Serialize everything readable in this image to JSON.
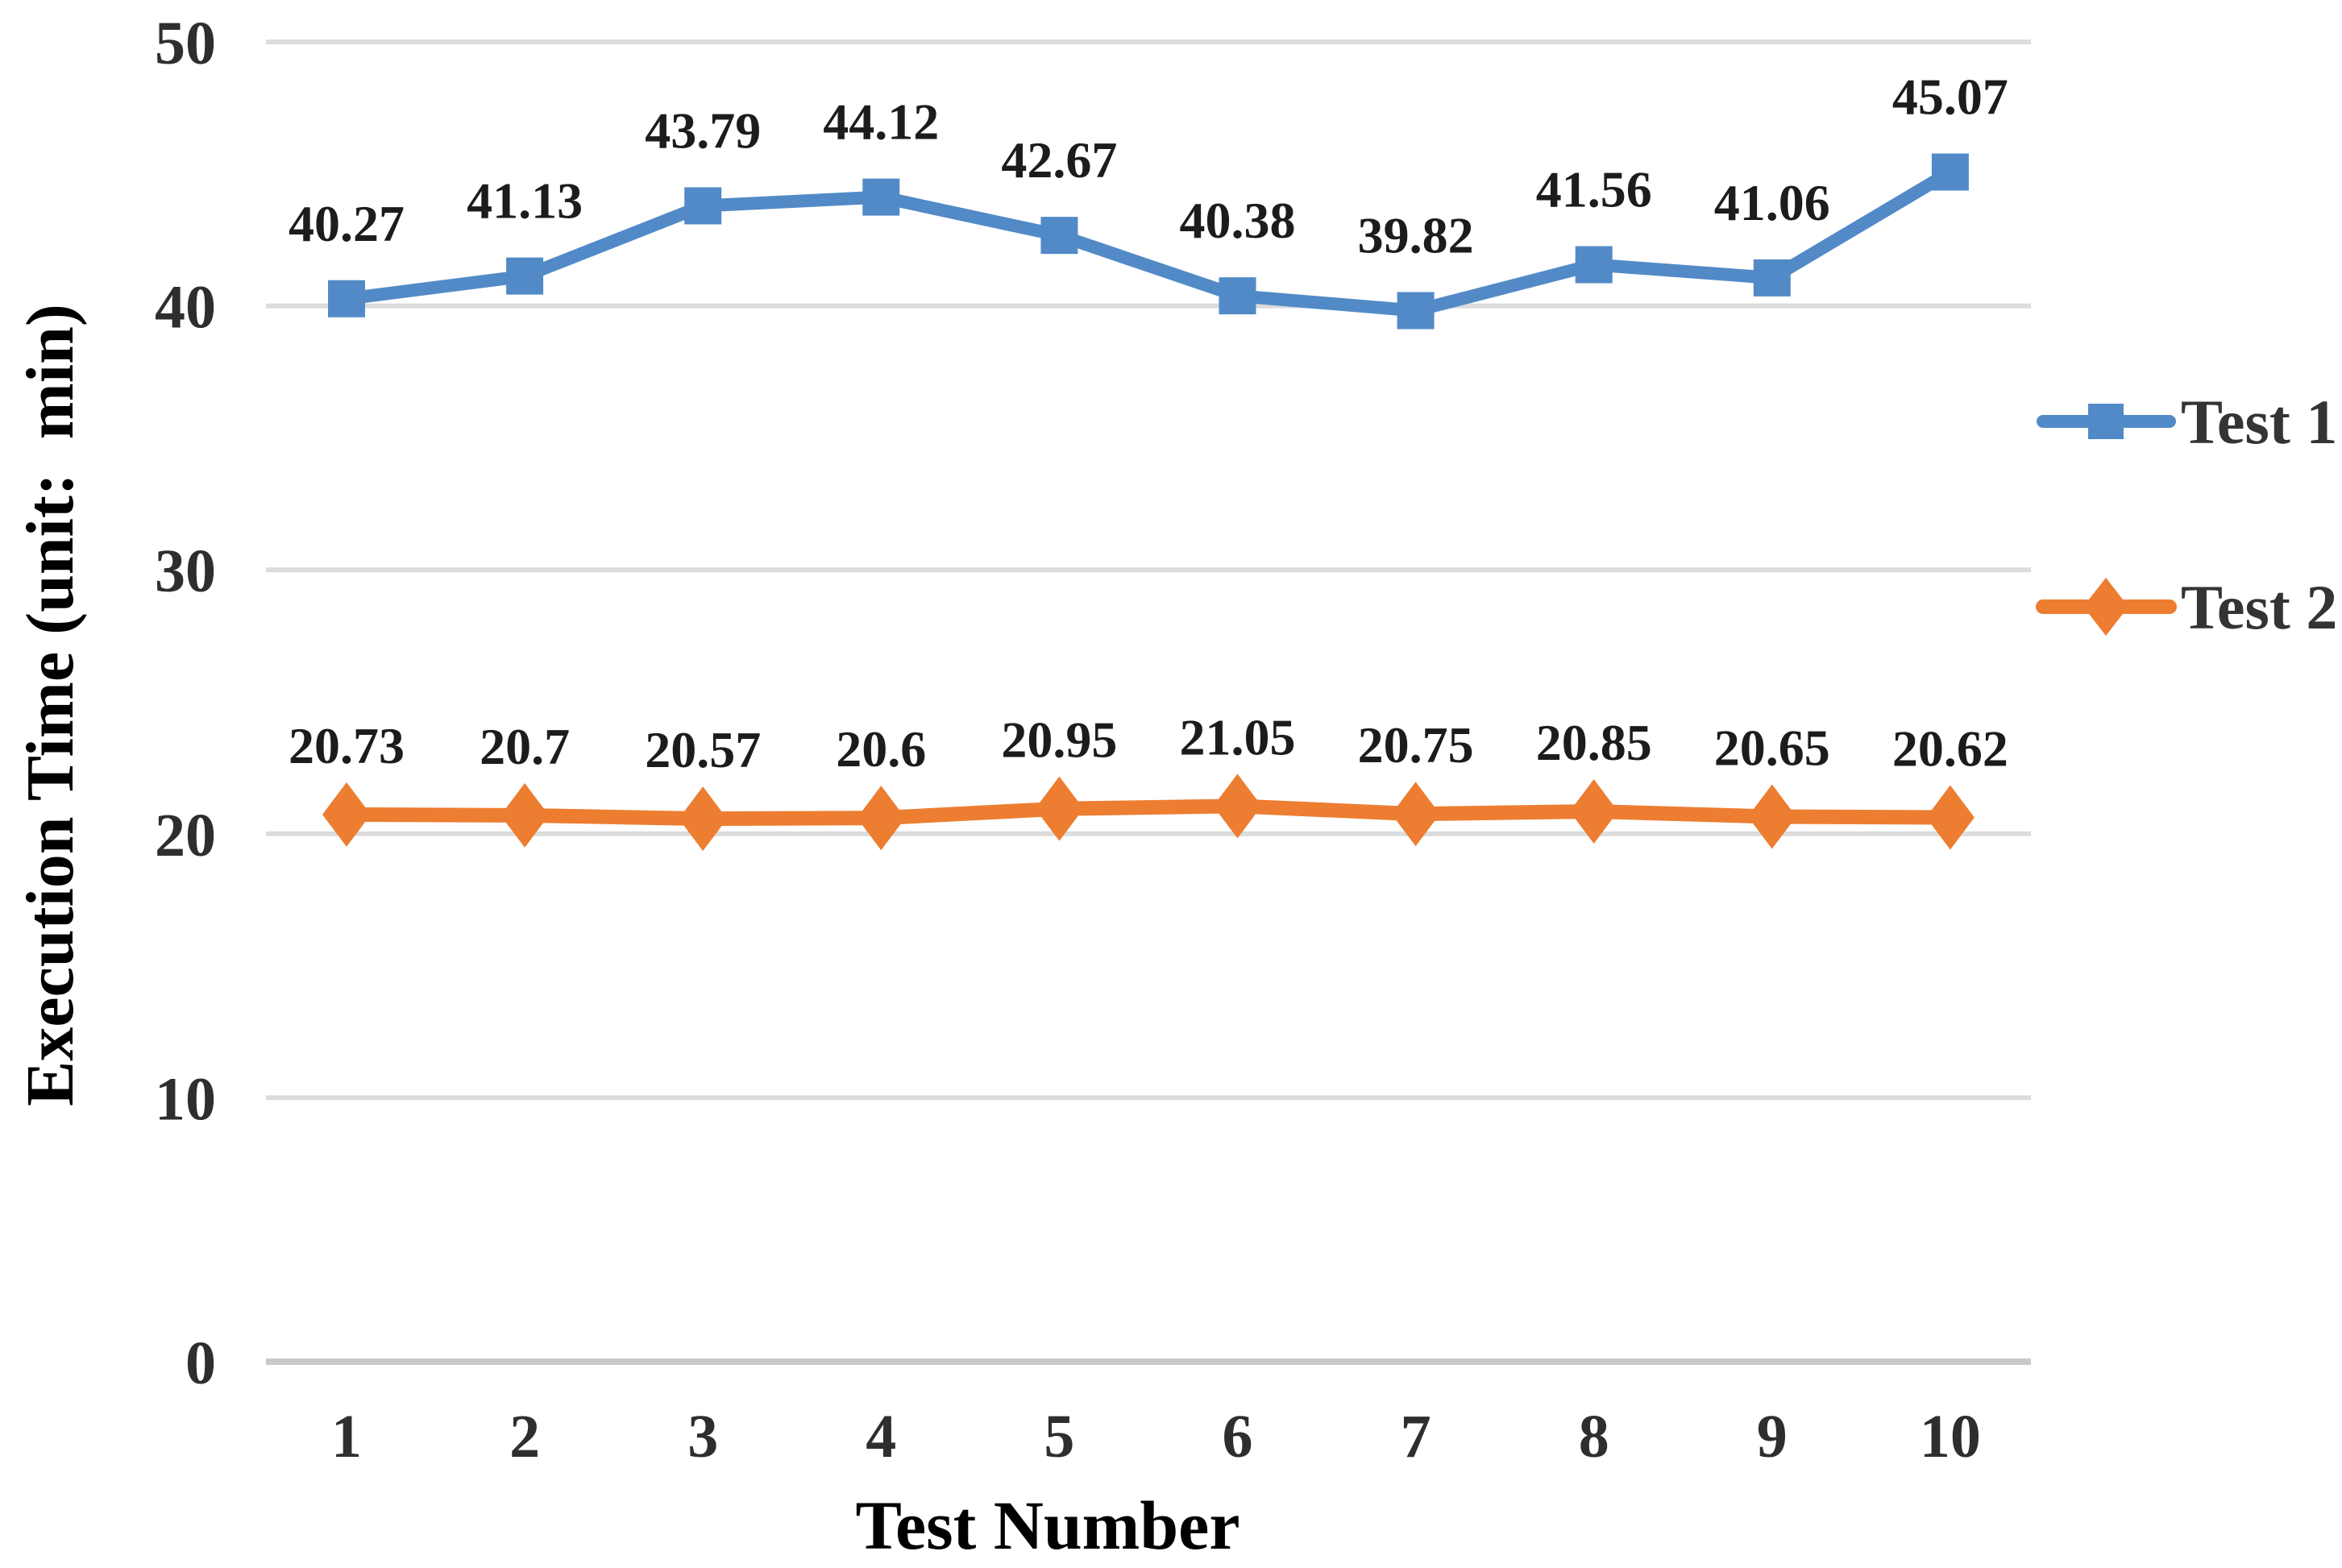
{
  "chart_data": {
    "type": "line",
    "title": "",
    "xlabel": "Test Number",
    "ylabel": "Execution Time (unit:  min)",
    "categories": [
      "1",
      "2",
      "3",
      "4",
      "5",
      "6",
      "7",
      "8",
      "9",
      "10"
    ],
    "series": [
      {
        "name": "Test 1",
        "marker": "square",
        "color": "#528AC7",
        "values": [
          40.27,
          41.13,
          43.79,
          44.12,
          42.67,
          40.38,
          39.82,
          41.56,
          41.06,
          45.07
        ],
        "labels": [
          "40.27",
          "41.13",
          "43.79",
          "44.12",
          "42.67",
          "40.38",
          "39.82",
          "41.56",
          "41.06",
          "45.07"
        ]
      },
      {
        "name": "Test 2",
        "marker": "diamond",
        "color": "#ED7D31",
        "values": [
          20.73,
          20.7,
          20.57,
          20.6,
          20.95,
          21.05,
          20.75,
          20.85,
          20.65,
          20.62
        ],
        "labels": [
          "20.73",
          "20.7",
          "20.57",
          "20.6",
          "20.95",
          "21.05",
          "20.75",
          "20.85",
          "20.65",
          "20.62"
        ]
      }
    ],
    "ylim": [
      0,
      50
    ],
    "yticks": [
      0,
      10,
      20,
      30,
      40,
      50
    ],
    "grid": true,
    "legend_position": "right",
    "colors": {
      "background": "#FFFFFF",
      "gridline": "#DCDCDC",
      "axis_line": "#C9C9C9",
      "tick_text": "#2E2E30",
      "data_label_text": "#1C1C1C",
      "axis_title_text": "#1A1A1A",
      "legend_text": "#343434"
    }
  }
}
